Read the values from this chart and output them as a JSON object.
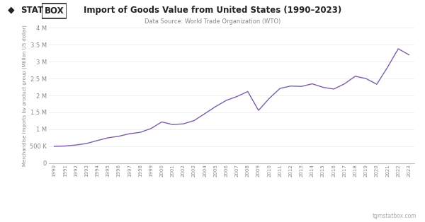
{
  "title": "Import of Goods Value from United States (1990–2023)",
  "subtitle": "Data Source: World Trade Organization (WTO)",
  "ylabel": "Merchandise imports by product group (Million US dollar)",
  "legend_label": "United States",
  "watermark": "tgmstatbox.com",
  "line_color": "#7B5EA7",
  "background_color": "#FFFFFF",
  "years": [
    1990,
    1991,
    1992,
    1993,
    1994,
    1995,
    1996,
    1997,
    1998,
    1999,
    2000,
    2001,
    2002,
    2003,
    2004,
    2005,
    2006,
    2007,
    2008,
    2009,
    2010,
    2011,
    2012,
    2013,
    2014,
    2015,
    2016,
    2017,
    2018,
    2019,
    2020,
    2021,
    2022,
    2023
  ],
  "values": [
    498000,
    507000,
    536000,
    580000,
    668000,
    749000,
    795000,
    870000,
    911000,
    1024000,
    1218000,
    1141000,
    1161000,
    1257000,
    1462000,
    1670000,
    1855000,
    1970000,
    2117000,
    1559000,
    1913000,
    2208000,
    2278000,
    2268000,
    2344000,
    2241000,
    2189000,
    2344000,
    2568000,
    2499000,
    2330000,
    2831000,
    3380000,
    3200000
  ],
  "ylim": [
    0,
    4000000
  ],
  "yticks": [
    0,
    500000,
    1000000,
    1500000,
    2000000,
    2500000,
    3000000,
    3500000,
    4000000
  ]
}
